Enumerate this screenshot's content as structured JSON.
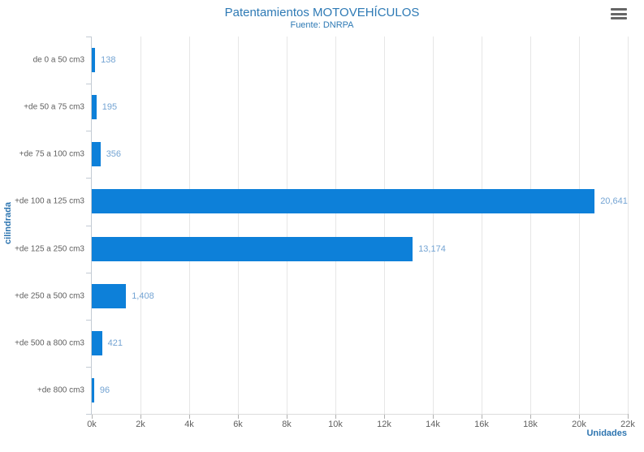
{
  "header": {
    "title": "Patentamientos MOTOVEHÍCULOS",
    "subtitle": "Fuente: DNRPA"
  },
  "colors": {
    "bar": "#0d80d9",
    "title": "#2e7ab5",
    "accent": "#2e75b0",
    "data_label": "#74a4d3",
    "axis_label": "#606060",
    "gridline": "#e6e6e6",
    "axis_line": "#c3cbd4"
  },
  "chart_data": {
    "type": "bar",
    "orientation": "horizontal",
    "title": "Patentamientos MOTOVEHÍCULOS",
    "subtitle": "Fuente: DNRPA",
    "xlabel": "Unidades",
    "ylabel": "cilindrada",
    "categories": [
      "de 0 a 50 cm3",
      "+de 50 a 75 cm3",
      "+de 75 a 100 cm3",
      "+de 100 a 125 cm3",
      "+de 125 a 250 cm3",
      "+de 250 a 500 cm3",
      "+de 500 a 800 cm3",
      "+de 800 cm3"
    ],
    "values": [
      138,
      195,
      356,
      20641,
      13174,
      1408,
      421,
      96
    ],
    "values_formatted": [
      "138",
      "195",
      "356",
      "20,641",
      "13,174",
      "1,408",
      "421",
      "96"
    ],
    "xlim": [
      0,
      22000
    ],
    "x_ticks": [
      "0k",
      "2k",
      "4k",
      "6k",
      "8k",
      "10k",
      "12k",
      "14k",
      "16k",
      "18k",
      "20k",
      "22k"
    ],
    "grid": true,
    "legend": false
  }
}
